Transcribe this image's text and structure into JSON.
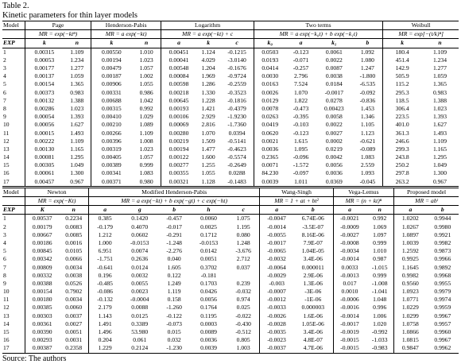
{
  "caption": [
    "Table 2.",
    "Kinetic parameters for thin layer models"
  ],
  "tables": [
    {
      "model_label": "Model",
      "exp_label": "EXP",
      "models": [
        {
          "name": "Page",
          "formula": "MR = exp(−ktⁿ)",
          "params": [
            "k",
            "n"
          ]
        },
        {
          "name": "Henderson-Pabis",
          "formula": "MR = a exp(−kt)",
          "params": [
            "k",
            "n"
          ]
        },
        {
          "name": "Logarithm",
          "formula": "MR = a exp(−kt) + c",
          "params": [
            "a",
            "k",
            "c"
          ]
        },
        {
          "name": "Two terms",
          "formula": "MR = a exp(−k₀t) + b exp(−k₁t)",
          "params": [
            "k₀",
            "a",
            "k₁",
            "b"
          ]
        },
        {
          "name": "Weibull",
          "formula": "MR = exp[−(t/k)ⁿ]",
          "params": [
            "k",
            "n"
          ]
        }
      ],
      "rows": [
        [
          "1",
          "0.00315",
          "1.109",
          "0.00550",
          "1.010",
          "0.00451",
          "1.124",
          "-0.1215",
          "0.0503",
          "-0.123",
          "0.0061",
          "1.092",
          "180.4",
          "1.109"
        ],
        [
          "2",
          "0.00053",
          "1.234",
          "0.00194",
          "1.023",
          "0.00041",
          "4.029",
          "-3.0140",
          "0.0193",
          "-0.071",
          "0.0022",
          "1.080",
          "451.4",
          "1.234"
        ],
        [
          "3",
          "0.00177",
          "1.277",
          "0.00479",
          "1.057",
          "0.00548",
          "1.204",
          "-0.1676",
          "0.0414",
          "-0.257",
          "0.0087",
          "1.247",
          "142.9",
          "1.277"
        ],
        [
          "4",
          "0.00137",
          "1.059",
          "0.00187",
          "1.002",
          "0.00084",
          "1.969",
          "-0.9724",
          "0.0030",
          "2.796",
          "0.0038",
          "-1.800",
          "505.9",
          "1.059"
        ],
        [
          "5",
          "0.00154",
          "1.365",
          "0.00906",
          "1.055",
          "0.00598",
          "1.286",
          "-0.2559",
          "0.0163",
          "7.524",
          "0.0184",
          "-6.535",
          "115.2",
          "1.365"
        ],
        [
          "6",
          "0.00373",
          "0.983",
          "0.00331",
          "0.986",
          "0.00218",
          "1.330",
          "-0.3523",
          "0.0026",
          "1.070",
          "-0.0017",
          "-0.092",
          "295.3",
          "0.983"
        ],
        [
          "7",
          "0.00132",
          "1.388",
          "0.00688",
          "1.042",
          "0.00645",
          "1.228",
          "-0.1816",
          "0.0129",
          "1.822",
          "0.0278",
          "-0.836",
          "118.5",
          "1.388"
        ],
        [
          "8",
          "0.00286",
          "1.023",
          "0.00315",
          "0.992",
          "0.00193",
          "1.421",
          "-0.4379",
          "0.0078",
          "-0.473",
          "0.00423",
          "1.453",
          "306.4",
          "1.023"
        ],
        [
          "9",
          "0.00054",
          "1.393",
          "0.00410",
          "1.029",
          "0.00106",
          "2.929",
          "-1.9230",
          "0.0263",
          "-0.395",
          "0.0058",
          "1.346",
          "223.5",
          "1.393"
        ],
        [
          "10",
          "0.00056",
          "1.627",
          "0.00210",
          "1.089",
          "0.00069",
          "2.816",
          "-1.7360",
          "0.0419",
          "-0.103",
          "0.0022",
          "1.105",
          "401.0",
          "1.627"
        ],
        [
          "11",
          "0.00015",
          "1.493",
          "0.00266",
          "1.109",
          "0.00280",
          "1.070",
          "0.0394",
          "0.0620",
          "-0.123",
          "0.0027",
          "1.123",
          "361.3",
          "1.493"
        ],
        [
          "12",
          "0.00222",
          "1.109",
          "0.00396",
          "1.008",
          "0.00219",
          "1.509",
          "-0.5141",
          "0.0021",
          "1.615",
          "0.0002",
          "-0.621",
          "246.6",
          "1.109"
        ],
        [
          "13",
          "0.00130",
          "1.165",
          "0.00319",
          "1.023",
          "0.00194",
          "1.477",
          "-0.4623",
          "0.0036",
          "1.095",
          "0.0219",
          "-0.089",
          "299.3",
          "1.165"
        ],
        [
          "14",
          "0.00081",
          "1.295",
          "0.00405",
          "1.057",
          "0.00122",
          "1.600",
          "-0.5574",
          "0.2365",
          "-0.096",
          "0.0042",
          "1.083",
          "243.8",
          "1.295"
        ],
        [
          "15",
          "0.00305",
          "1.049",
          "0.00389",
          "0.999",
          "0.00277",
          "1.255",
          "-0.2649",
          "0.0071",
          "-1.572",
          "0.0056",
          "2.559",
          "250.2",
          "1.049"
        ],
        [
          "16",
          "0.00061",
          "1.300",
          "0.00341",
          "1.083",
          "0.00355",
          "1.055",
          "0.0288",
          "84.230",
          "-0.097",
          "0.0036",
          "1.093",
          "297.8",
          "1.300"
        ],
        [
          "17",
          "0.00457",
          "0.967",
          "0.00371",
          "0.980",
          "0.00321",
          "1.128",
          "-0.1483",
          "0.0039",
          "1.011",
          "0.0369",
          "-0.045",
          "263.2",
          "0.967"
        ]
      ]
    },
    {
      "model_label": "Model",
      "exp_label": "EXP",
      "models": [
        {
          "name": "Newton",
          "formula": "MR = exp(−Kt)",
          "params": [
            "K",
            "n"
          ]
        },
        {
          "name": "Modified Henderson-Pabis",
          "formula": "MR = a exp(−kt) + b exp(−gt) + c exp(−ht)",
          "params": [
            "a",
            "g",
            "b",
            "h",
            "c"
          ]
        },
        {
          "name": "Wang-Singh",
          "formula": "MR = 1 + at + bt²",
          "params": [
            "a",
            "b"
          ]
        },
        {
          "name": "Vega-Lemus",
          "formula": "MR = (n + kt)ⁿ",
          "params": [
            "a",
            "n"
          ]
        },
        {
          "name": "Proposed model",
          "formula": "MR = abᵗ",
          "params": [
            "a",
            "b"
          ]
        }
      ],
      "rows": [
        [
          "1",
          "0.00537",
          "0.2234",
          "0.385",
          "0.1420",
          "-0.457",
          "0.0060",
          "1.075",
          "-0.0047",
          "6.74E-06",
          "-0.0021",
          "0.992",
          "1.0202",
          "0.9944"
        ],
        [
          "2",
          "0.00179",
          "0.0083",
          "-0.179",
          "0.4070",
          "-0.017",
          "0.0025",
          "1.195",
          "-0.0014",
          "-3.5E-07",
          "-0.0009",
          "1.069",
          "1.0267",
          "0.9980"
        ],
        [
          "3",
          "0.00667",
          "0.0085",
          "1.212",
          "0.0602",
          "-0.291",
          "0.1712",
          "0.080",
          "-0.0055",
          "8.16E-06",
          "-0.0027",
          "1.097",
          "1.0897",
          "0.9921"
        ],
        [
          "4",
          "0.00186",
          "0.0016",
          "1.000",
          "-0.0153",
          "-1.248",
          "-0.0153",
          "1.248",
          "-0.0017",
          "7.9E-07",
          "-0.0008",
          "0.999",
          "1.0039",
          "0.9982"
        ],
        [
          "5",
          "0.00845",
          "0.0105",
          "6.951",
          "0.0074",
          "-2.276",
          "0.0142",
          "-3.676",
          "-0.0065",
          "1.04E-05",
          "-0.0034",
          "1.010",
          "1.2592",
          "0.9873"
        ],
        [
          "6",
          "0.00342",
          "0.0066",
          "-1.751",
          "0.2636",
          "0.040",
          "0.0051",
          "2.712",
          "-0.0032",
          "3.4E-06",
          "-0.0014",
          "0.987",
          "0.9925",
          "0.9966"
        ],
        [
          "7",
          "0.00809",
          "0.0034",
          "-0.641",
          "0.0124",
          "1.605",
          "0.3702",
          "0.037",
          "-0.0064",
          "0.000011",
          "0.0033",
          "-1.015",
          "1.1645",
          "0.9892"
        ],
        [
          "8",
          "0.00332",
          "0.0038",
          "0.196",
          "0.0032",
          "0.122",
          "-0.181",
          null,
          "-0.0029",
          "2.9E-06",
          "-0.0013",
          "0.999",
          "0.9982",
          "0.9968"
        ],
        [
          "9",
          "0.00388",
          "0.0526",
          "-0.485",
          "0.0055",
          "1.249",
          "0.1703",
          "0.239",
          "-0.003",
          "1.3E-06",
          "0.017",
          "-1.008",
          "0.9560",
          "0.9955"
        ],
        [
          "10",
          "0.00154",
          "0.7902",
          "-0.086",
          "0.0023",
          "1.119",
          "0.0426",
          "-0.032",
          "-0.0007",
          "-3E-06",
          "0.0010",
          "-1.041",
          "1.0923",
          "0.9979"
        ],
        [
          "11",
          "0.00180",
          "0.0034",
          "-0.132",
          "-0.0004",
          "0.158",
          "0.0056",
          "0.974",
          "-0.0012",
          "-1E-06",
          "-0.0006",
          "1.048",
          "1.0771",
          "0.9974"
        ],
        [
          "12",
          "0.00385",
          "0.0060",
          "2.179",
          "0.0088",
          "-1.260",
          "0.1764",
          "0.025",
          "-0.0033",
          "0.000003",
          "-0.0016",
          "0.996",
          "1.0229",
          "0.9959"
        ],
        [
          "13",
          "0.00303",
          "0.0037",
          "1.143",
          "0.0125",
          "-0.122",
          "0.1195",
          "-0.022",
          "-0.0026",
          "1.6E-06",
          "-0.0014",
          "1.006",
          "1.0299",
          "0.9967"
        ],
        [
          "14",
          "0.00361",
          "0.0027",
          "1.491",
          "0.3389",
          "-0.073",
          "0.0003",
          "-0.430",
          "-0.0028",
          "1.05E-06",
          "-0.0017",
          "1.020",
          "1.0758",
          "0.9957"
        ],
        [
          "15",
          "0.00390",
          "0.0051",
          "1.496",
          "53.980",
          "0.015",
          "0.0089",
          "-0.512",
          "-0.0035",
          "3.4E-06",
          "-0.0019",
          "-0.992",
          "1.0866",
          "0.9960"
        ],
        [
          "16",
          "0.00293",
          "0.0031",
          "0.204",
          "0.061",
          "0.032",
          "0.0036",
          "0.805",
          "-0.0023",
          "4.8E-07",
          "-0.0015",
          "-1.033",
          "1.0815",
          "0.9967"
        ],
        [
          "17",
          "0.00387",
          "0.2358",
          "1.229",
          "0.2124",
          "-1.230",
          "0.0039",
          "1.003",
          "-0.0037",
          "4.7E-06",
          "-0.0015",
          "-0.983",
          "0.9847",
          "0.9962"
        ]
      ]
    }
  ],
  "source": "Source: The authors"
}
